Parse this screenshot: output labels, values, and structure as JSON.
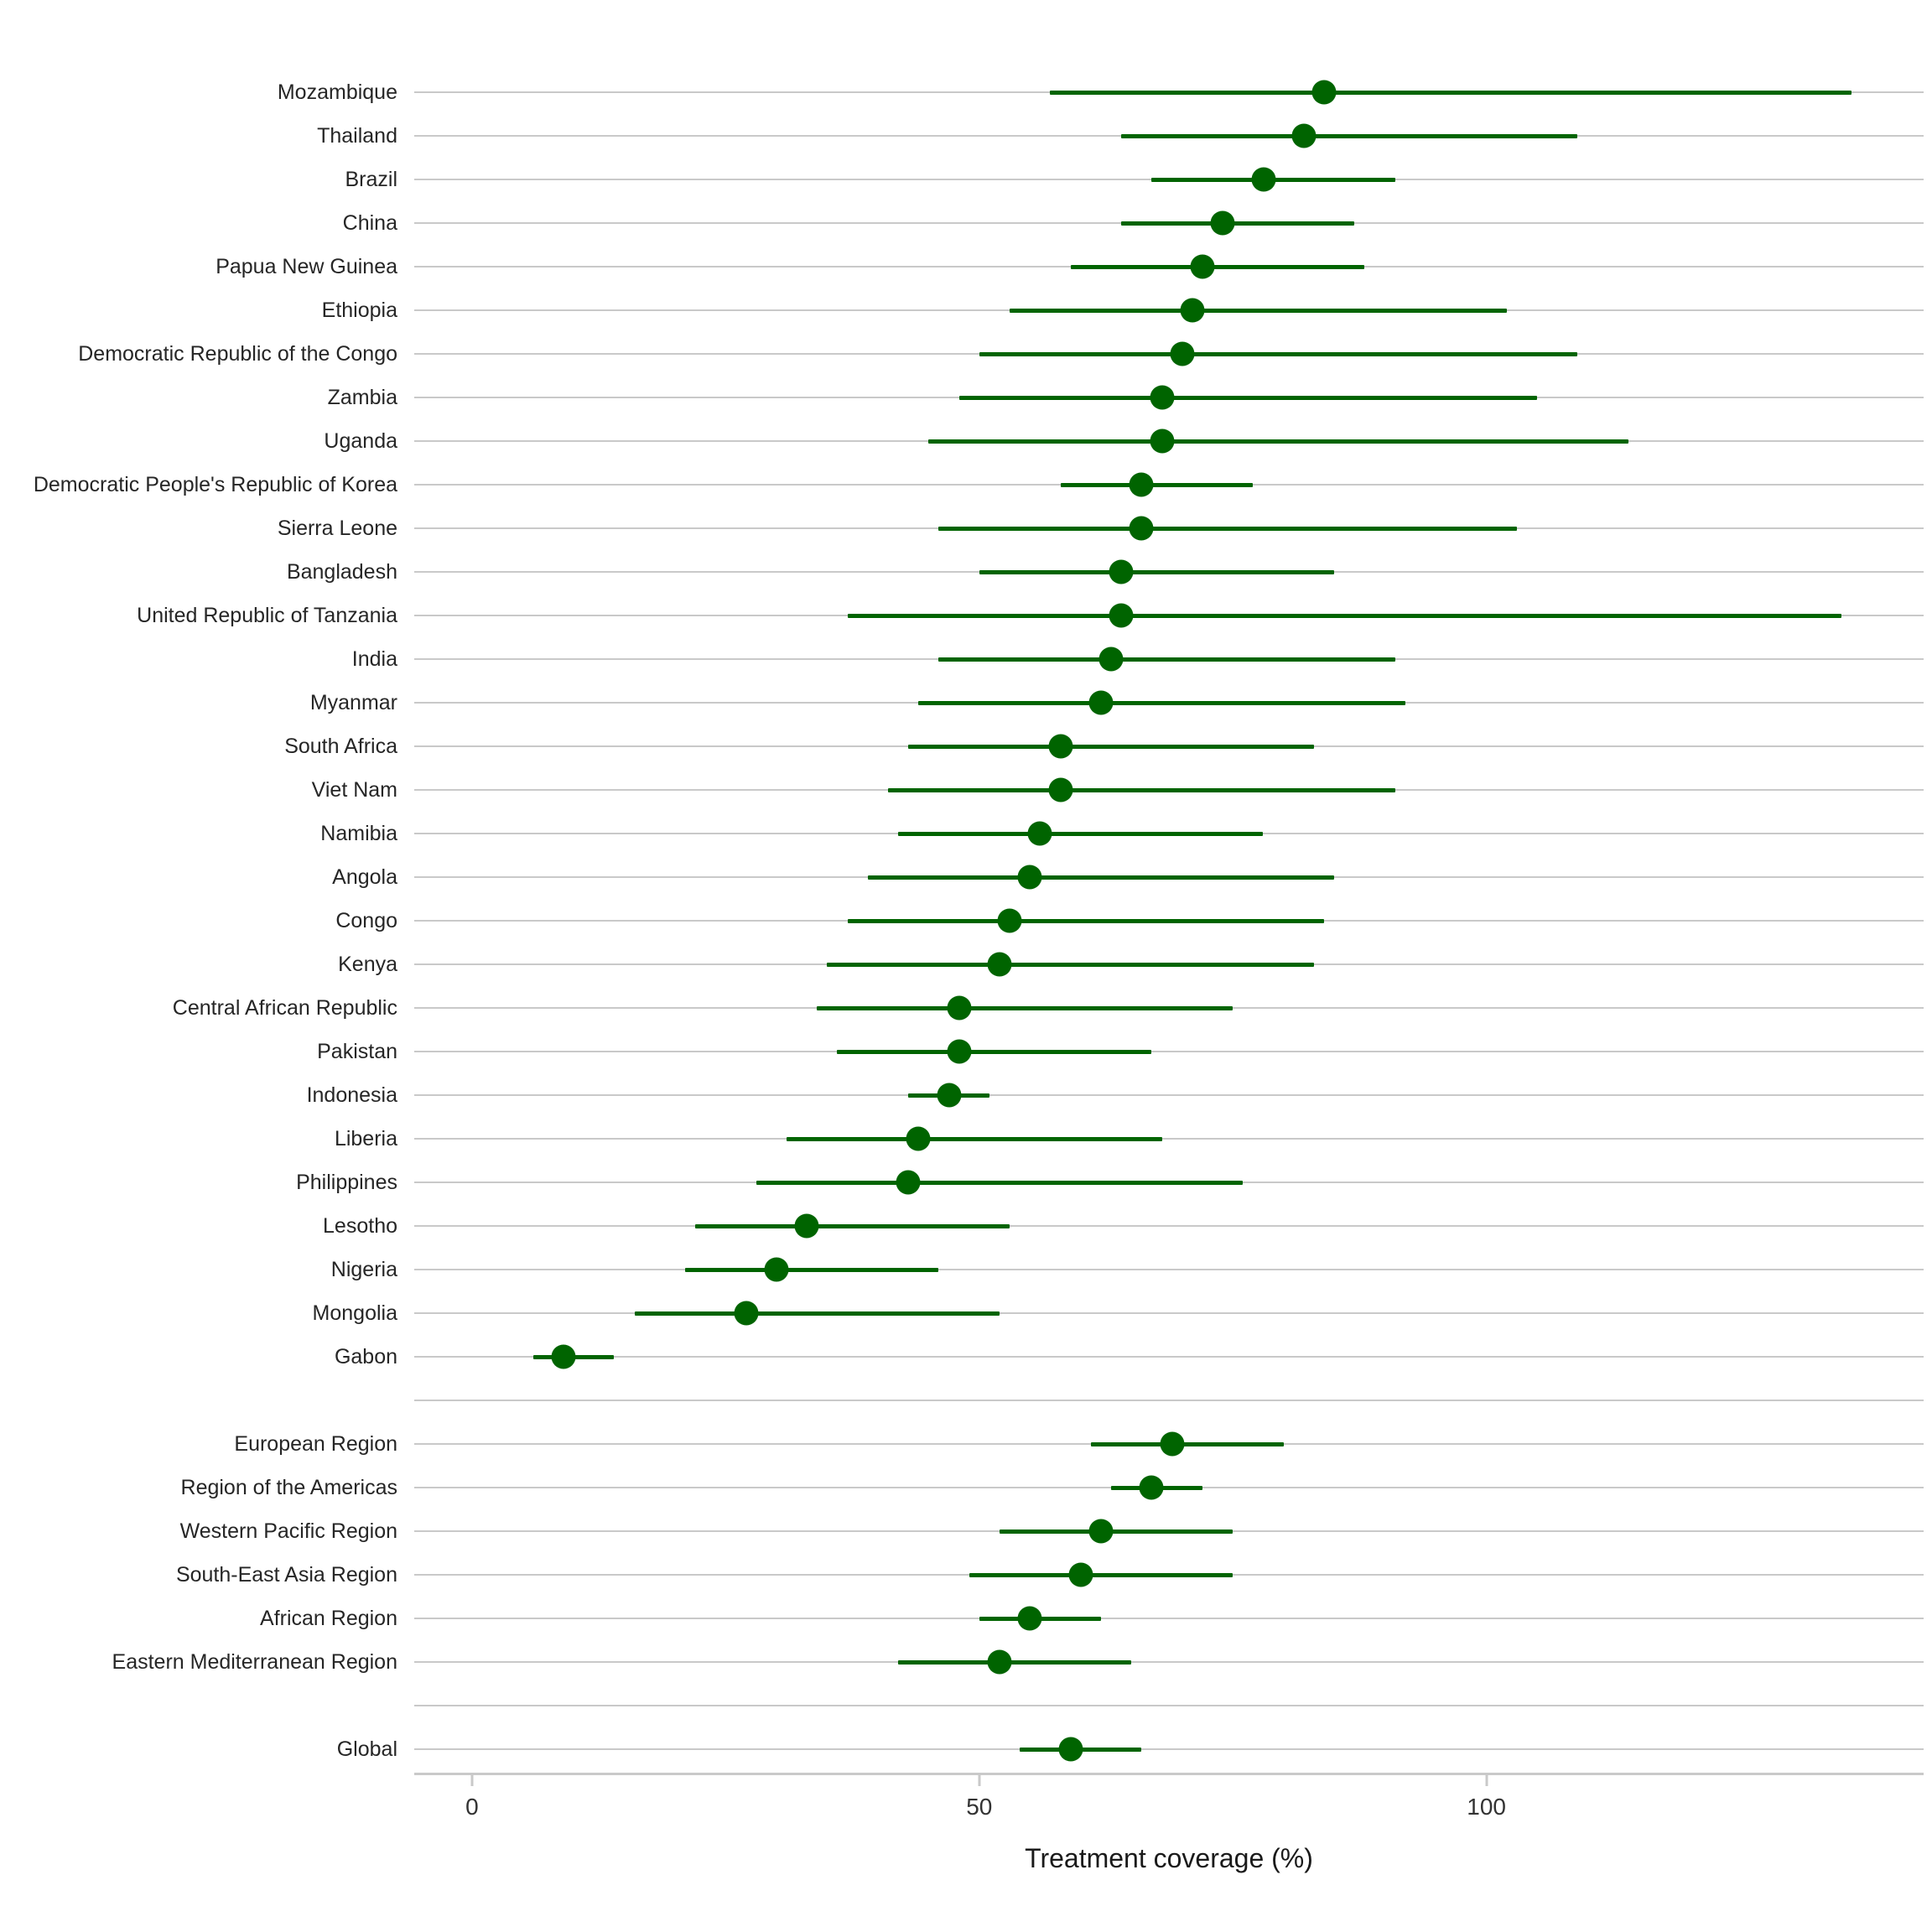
{
  "x_axis": {
    "title": "Treatment coverage (%)",
    "ticks": [
      "0",
      "50",
      "100"
    ],
    "tick_values": [
      0,
      50,
      100
    ]
  },
  "style": {
    "point_color": "#006400",
    "gridline_color": "#c9c9c9",
    "axis_color": "#c9c9c9",
    "tick_label_color": "#333333",
    "row_label_color": "#262626",
    "title_color": "#1a1a1a",
    "background": "#ffffff"
  },
  "chart_data": {
    "type": "scatter",
    "variant": "dot-plot-with-error-bars",
    "orientation": "horizontal",
    "title": "",
    "xlabel": "Treatment coverage (%)",
    "ylabel": "",
    "xlim": [
      -5.7,
      143.1
    ],
    "x_ticks": [
      0,
      50,
      100
    ],
    "grid": "horizontal-only",
    "legend": "none",
    "groups": [
      {
        "name": "countries",
        "rows": [
          {
            "label": "Mozambique",
            "est": 84,
            "lo": 57,
            "hi": 136
          },
          {
            "label": "Thailand",
            "est": 82,
            "lo": 64,
            "hi": 109
          },
          {
            "label": "Brazil",
            "est": 78,
            "lo": 67,
            "hi": 91
          },
          {
            "label": "China",
            "est": 74,
            "lo": 64,
            "hi": 87
          },
          {
            "label": "Papua New Guinea",
            "est": 72,
            "lo": 59,
            "hi": 88
          },
          {
            "label": "Ethiopia",
            "est": 71,
            "lo": 53,
            "hi": 102
          },
          {
            "label": "Democratic Republic of the Congo",
            "est": 70,
            "lo": 50,
            "hi": 109
          },
          {
            "label": "Zambia",
            "est": 68,
            "lo": 48,
            "hi": 105
          },
          {
            "label": "Uganda",
            "est": 68,
            "lo": 45,
            "hi": 114
          },
          {
            "label": "Democratic People's Republic of Korea",
            "est": 66,
            "lo": 58,
            "hi": 77
          },
          {
            "label": "Sierra Leone",
            "est": 66,
            "lo": 46,
            "hi": 103
          },
          {
            "label": "Bangladesh",
            "est": 64,
            "lo": 50,
            "hi": 85
          },
          {
            "label": "United Republic of Tanzania",
            "est": 64,
            "lo": 37,
            "hi": 135
          },
          {
            "label": "India",
            "est": 63,
            "lo": 46,
            "hi": 91
          },
          {
            "label": "Myanmar",
            "est": 62,
            "lo": 44,
            "hi": 92
          },
          {
            "label": "South Africa",
            "est": 58,
            "lo": 43,
            "hi": 83
          },
          {
            "label": "Viet Nam",
            "est": 58,
            "lo": 41,
            "hi": 91
          },
          {
            "label": "Namibia",
            "est": 56,
            "lo": 42,
            "hi": 78
          },
          {
            "label": "Angola",
            "est": 55,
            "lo": 39,
            "hi": 85
          },
          {
            "label": "Congo",
            "est": 53,
            "lo": 37,
            "hi": 84
          },
          {
            "label": "Kenya",
            "est": 52,
            "lo": 35,
            "hi": 83
          },
          {
            "label": "Central African Republic",
            "est": 48,
            "lo": 34,
            "hi": 75
          },
          {
            "label": "Pakistan",
            "est": 48,
            "lo": 36,
            "hi": 67
          },
          {
            "label": "Indonesia",
            "est": 47,
            "lo": 43,
            "hi": 51
          },
          {
            "label": "Liberia",
            "est": 44,
            "lo": 31,
            "hi": 68
          },
          {
            "label": "Philippines",
            "est": 43,
            "lo": 28,
            "hi": 76
          },
          {
            "label": "Lesotho",
            "est": 33,
            "lo": 22,
            "hi": 53
          },
          {
            "label": "Nigeria",
            "est": 30,
            "lo": 21,
            "hi": 46
          },
          {
            "label": "Mongolia",
            "est": 27,
            "lo": 16,
            "hi": 52
          },
          {
            "label": "Gabon",
            "est": 9,
            "lo": 6,
            "hi": 14
          }
        ]
      },
      {
        "name": "who-regions",
        "rows": [
          {
            "label": "European Region",
            "est": 69,
            "lo": 61,
            "hi": 80
          },
          {
            "label": "Region of the Americas",
            "est": 67,
            "lo": 63,
            "hi": 72
          },
          {
            "label": "Western Pacific Region",
            "est": 62,
            "lo": 52,
            "hi": 75
          },
          {
            "label": "South-East Asia Region",
            "est": 60,
            "lo": 49,
            "hi": 75
          },
          {
            "label": "African Region",
            "est": 55,
            "lo": 50,
            "hi": 62
          },
          {
            "label": "Eastern Mediterranean Region",
            "est": 52,
            "lo": 42,
            "hi": 65
          }
        ]
      },
      {
        "name": "global",
        "rows": [
          {
            "label": "Global",
            "est": 59,
            "lo": 54,
            "hi": 66
          }
        ]
      }
    ]
  }
}
